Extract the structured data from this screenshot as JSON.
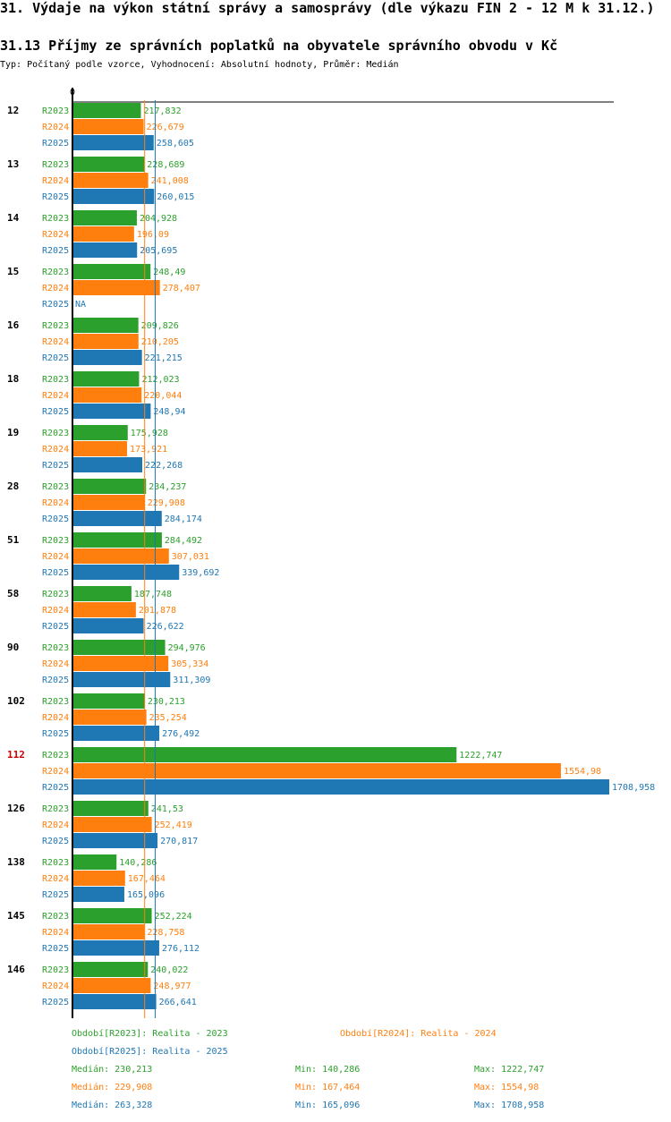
{
  "header": {
    "title": "31. Výdaje na výkon státní správy a samosprávy (dle výkazu FIN 2 - 12 M k 31.12.)",
    "subtitle": "31.13 Příjmy ze správních poplatků na obyvatele správního obvodu v Kč",
    "type_line": "Typ: Počítaný podle vzorce, Vyhodnocení: Absolutní hodnoty, Průměr: Medián"
  },
  "colors": {
    "R2023": "#2ca02c",
    "R2024": "#ff7f0e",
    "R2025": "#1f77b4",
    "highlight": "#cc0000"
  },
  "chart_data": {
    "type": "bar",
    "orientation": "horizontal",
    "axis_zero_label": "0",
    "xlim": [
      0,
      1708.958
    ],
    "series_names": [
      "R2023",
      "R2024",
      "R2025"
    ],
    "highlight_category": "112",
    "categories": [
      {
        "name": "12",
        "values": [
          217.832,
          226.679,
          258.605
        ],
        "labels": [
          "217,832",
          "226,679",
          "258,605"
        ]
      },
      {
        "name": "13",
        "values": [
          228.689,
          241.008,
          260.015
        ],
        "labels": [
          "228,689",
          "241,008",
          "260,015"
        ]
      },
      {
        "name": "14",
        "values": [
          204.928,
          196.09,
          205.695
        ],
        "labels": [
          "204,928",
          "196,09",
          "205,695"
        ]
      },
      {
        "name": "15",
        "values": [
          248.49,
          278.407,
          null
        ],
        "labels": [
          "248,49",
          "278,407",
          "NA"
        ]
      },
      {
        "name": "16",
        "values": [
          209.826,
          210.205,
          221.215
        ],
        "labels": [
          "209,826",
          "210,205",
          "221,215"
        ]
      },
      {
        "name": "18",
        "values": [
          212.023,
          220.044,
          248.94
        ],
        "labels": [
          "212,023",
          "220,044",
          "248,94"
        ]
      },
      {
        "name": "19",
        "values": [
          175.928,
          173.921,
          222.268
        ],
        "labels": [
          "175,928",
          "173,921",
          "222,268"
        ]
      },
      {
        "name": "28",
        "values": [
          234.237,
          229.908,
          284.174
        ],
        "labels": [
          "234,237",
          "229,908",
          "284,174"
        ]
      },
      {
        "name": "51",
        "values": [
          284.492,
          307.031,
          339.692
        ],
        "labels": [
          "284,492",
          "307,031",
          "339,692"
        ]
      },
      {
        "name": "58",
        "values": [
          187.748,
          201.878,
          226.622
        ],
        "labels": [
          "187,748",
          "201,878",
          "226,622"
        ]
      },
      {
        "name": "90",
        "values": [
          294.976,
          305.334,
          311.309
        ],
        "labels": [
          "294,976",
          "305,334",
          "311,309"
        ]
      },
      {
        "name": "102",
        "values": [
          230.213,
          235.254,
          276.492
        ],
        "labels": [
          "230,213",
          "235,254",
          "276,492"
        ]
      },
      {
        "name": "112",
        "values": [
          1222.747,
          1554.98,
          1708.958
        ],
        "labels": [
          "1222,747",
          "1554,98",
          "1708,958"
        ]
      },
      {
        "name": "126",
        "values": [
          241.53,
          252.419,
          270.817
        ],
        "labels": [
          "241,53",
          "252,419",
          "270,817"
        ]
      },
      {
        "name": "138",
        "values": [
          140.286,
          167.464,
          165.096
        ],
        "labels": [
          "140,286",
          "167,464",
          "165,096"
        ]
      },
      {
        "name": "145",
        "values": [
          252.224,
          228.758,
          276.112
        ],
        "labels": [
          "252,224",
          "228,758",
          "276,112"
        ]
      },
      {
        "name": "146",
        "values": [
          240.022,
          248.977,
          266.641
        ],
        "labels": [
          "240,022",
          "248,977",
          "266,641"
        ]
      }
    ],
    "median_lines": [
      229.908,
      263.328
    ]
  },
  "legend": {
    "period_r2023": "Období[R2023]: Realita - 2023",
    "period_r2024": "Období[R2024]: Realita - 2024",
    "period_r2025": "Období[R2025]: Realita - 2025",
    "stats": [
      {
        "median": "Medián: 230,213",
        "min": "Min: 140,286",
        "max": "Max: 1222,747"
      },
      {
        "median": "Medián: 229,908",
        "min": "Min: 167,464",
        "max": "Max: 1554,98"
      },
      {
        "median": "Medián: 263,328",
        "min": "Min: 165,096",
        "max": "Max: 1708,958"
      }
    ]
  }
}
